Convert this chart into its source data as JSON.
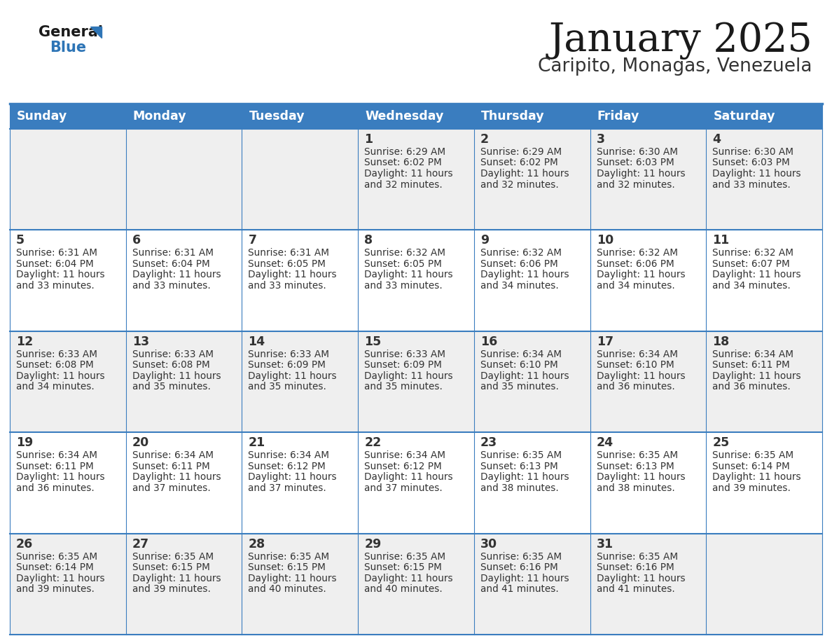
{
  "title": "January 2025",
  "subtitle": "Caripito, Monagas, Venezuela",
  "days_of_week": [
    "Sunday",
    "Monday",
    "Tuesday",
    "Wednesday",
    "Thursday",
    "Friday",
    "Saturday"
  ],
  "header_bg": "#3A7DBF",
  "header_text": "#FFFFFF",
  "row_bg_odd": "#EFEFEF",
  "row_bg_even": "#FFFFFF",
  "cell_text_color": "#333333",
  "day_num_color": "#333333",
  "border_color": "#3A7DBF",
  "title_color": "#1a1a1a",
  "subtitle_color": "#333333",
  "logo_general_color": "#1a1a1a",
  "logo_blue_color": "#2E75B6",
  "logo_triangle_color": "#2E75B6",
  "calendar": [
    [
      {
        "day": "",
        "sunrise": "",
        "sunset": "",
        "daylight": ""
      },
      {
        "day": "",
        "sunrise": "",
        "sunset": "",
        "daylight": ""
      },
      {
        "day": "",
        "sunrise": "",
        "sunset": "",
        "daylight": ""
      },
      {
        "day": "1",
        "sunrise": "6:29 AM",
        "sunset": "6:02 PM",
        "daylight": "11 hours and 32 minutes."
      },
      {
        "day": "2",
        "sunrise": "6:29 AM",
        "sunset": "6:02 PM",
        "daylight": "11 hours and 32 minutes."
      },
      {
        "day": "3",
        "sunrise": "6:30 AM",
        "sunset": "6:03 PM",
        "daylight": "11 hours and 32 minutes."
      },
      {
        "day": "4",
        "sunrise": "6:30 AM",
        "sunset": "6:03 PM",
        "daylight": "11 hours and 33 minutes."
      }
    ],
    [
      {
        "day": "5",
        "sunrise": "6:31 AM",
        "sunset": "6:04 PM",
        "daylight": "11 hours and 33 minutes."
      },
      {
        "day": "6",
        "sunrise": "6:31 AM",
        "sunset": "6:04 PM",
        "daylight": "11 hours and 33 minutes."
      },
      {
        "day": "7",
        "sunrise": "6:31 AM",
        "sunset": "6:05 PM",
        "daylight": "11 hours and 33 minutes."
      },
      {
        "day": "8",
        "sunrise": "6:32 AM",
        "sunset": "6:05 PM",
        "daylight": "11 hours and 33 minutes."
      },
      {
        "day": "9",
        "sunrise": "6:32 AM",
        "sunset": "6:06 PM",
        "daylight": "11 hours and 34 minutes."
      },
      {
        "day": "10",
        "sunrise": "6:32 AM",
        "sunset": "6:06 PM",
        "daylight": "11 hours and 34 minutes."
      },
      {
        "day": "11",
        "sunrise": "6:32 AM",
        "sunset": "6:07 PM",
        "daylight": "11 hours and 34 minutes."
      }
    ],
    [
      {
        "day": "12",
        "sunrise": "6:33 AM",
        "sunset": "6:08 PM",
        "daylight": "11 hours and 34 minutes."
      },
      {
        "day": "13",
        "sunrise": "6:33 AM",
        "sunset": "6:08 PM",
        "daylight": "11 hours and 35 minutes."
      },
      {
        "day": "14",
        "sunrise": "6:33 AM",
        "sunset": "6:09 PM",
        "daylight": "11 hours and 35 minutes."
      },
      {
        "day": "15",
        "sunrise": "6:33 AM",
        "sunset": "6:09 PM",
        "daylight": "11 hours and 35 minutes."
      },
      {
        "day": "16",
        "sunrise": "6:34 AM",
        "sunset": "6:10 PM",
        "daylight": "11 hours and 35 minutes."
      },
      {
        "day": "17",
        "sunrise": "6:34 AM",
        "sunset": "6:10 PM",
        "daylight": "11 hours and 36 minutes."
      },
      {
        "day": "18",
        "sunrise": "6:34 AM",
        "sunset": "6:11 PM",
        "daylight": "11 hours and 36 minutes."
      }
    ],
    [
      {
        "day": "19",
        "sunrise": "6:34 AM",
        "sunset": "6:11 PM",
        "daylight": "11 hours and 36 minutes."
      },
      {
        "day": "20",
        "sunrise": "6:34 AM",
        "sunset": "6:11 PM",
        "daylight": "11 hours and 37 minutes."
      },
      {
        "day": "21",
        "sunrise": "6:34 AM",
        "sunset": "6:12 PM",
        "daylight": "11 hours and 37 minutes."
      },
      {
        "day": "22",
        "sunrise": "6:34 AM",
        "sunset": "6:12 PM",
        "daylight": "11 hours and 37 minutes."
      },
      {
        "day": "23",
        "sunrise": "6:35 AM",
        "sunset": "6:13 PM",
        "daylight": "11 hours and 38 minutes."
      },
      {
        "day": "24",
        "sunrise": "6:35 AM",
        "sunset": "6:13 PM",
        "daylight": "11 hours and 38 minutes."
      },
      {
        "day": "25",
        "sunrise": "6:35 AM",
        "sunset": "6:14 PM",
        "daylight": "11 hours and 39 minutes."
      }
    ],
    [
      {
        "day": "26",
        "sunrise": "6:35 AM",
        "sunset": "6:14 PM",
        "daylight": "11 hours and 39 minutes."
      },
      {
        "day": "27",
        "sunrise": "6:35 AM",
        "sunset": "6:15 PM",
        "daylight": "11 hours and 39 minutes."
      },
      {
        "day": "28",
        "sunrise": "6:35 AM",
        "sunset": "6:15 PM",
        "daylight": "11 hours and 40 minutes."
      },
      {
        "day": "29",
        "sunrise": "6:35 AM",
        "sunset": "6:15 PM",
        "daylight": "11 hours and 40 minutes."
      },
      {
        "day": "30",
        "sunrise": "6:35 AM",
        "sunset": "6:16 PM",
        "daylight": "11 hours and 41 minutes."
      },
      {
        "day": "31",
        "sunrise": "6:35 AM",
        "sunset": "6:16 PM",
        "daylight": "11 hours and 41 minutes."
      },
      {
        "day": "",
        "sunrise": "",
        "sunset": "",
        "daylight": ""
      }
    ]
  ]
}
